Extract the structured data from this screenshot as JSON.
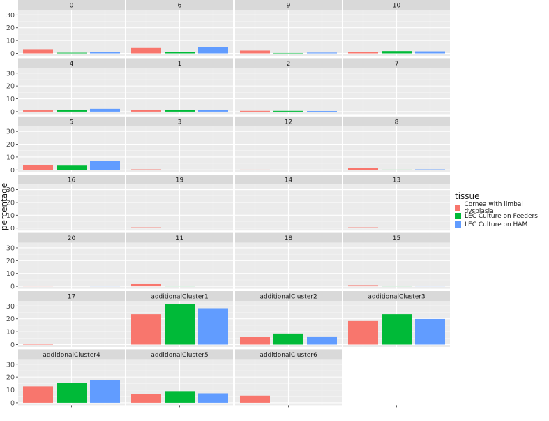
{
  "chart_data": {
    "type": "bar",
    "ylabel": "percentage",
    "ylim": [
      0,
      34
    ],
    "yticks": [
      0,
      10,
      20,
      30
    ],
    "grid": true,
    "legend_position": "right",
    "legend_title": "tissue",
    "series_names": [
      "Cornea with limbal dysplasia",
      "LEC Culture on Feeders",
      "LEC Culture on HAM"
    ],
    "colors": {
      "Cornea with limbal dysplasia": "#F8766D",
      "LEC Culture on Feeders": "#00BA38",
      "LEC Culture on HAM": "#619CFF"
    },
    "facets": [
      {
        "title": "0",
        "values": [
          3.3,
          0.5,
          0.8
        ]
      },
      {
        "title": "6",
        "values": [
          4.2,
          1.2,
          5.0
        ]
      },
      {
        "title": "9",
        "values": [
          2.2,
          0.3,
          0.6
        ]
      },
      {
        "title": "10",
        "values": [
          1.2,
          1.8,
          1.6
        ]
      },
      {
        "title": "4",
        "values": [
          1.0,
          1.5,
          2.2
        ]
      },
      {
        "title": "1",
        "values": [
          1.5,
          1.5,
          1.2
        ]
      },
      {
        "title": "2",
        "values": [
          0.6,
          0.6,
          0.5
        ]
      },
      {
        "title": "7",
        "values": [
          0,
          0,
          0
        ]
      },
      {
        "title": "5",
        "values": [
          3.5,
          3.3,
          6.7
        ]
      },
      {
        "title": "3",
        "values": [
          0.4,
          0.05,
          0.1
        ]
      },
      {
        "title": "12",
        "values": [
          0.2,
          0.05,
          0.05
        ]
      },
      {
        "title": "8",
        "values": [
          1.6,
          0.2,
          0.4
        ]
      },
      {
        "title": "16",
        "values": [
          0,
          0,
          0
        ]
      },
      {
        "title": "19",
        "values": [
          0.6,
          0.05,
          0.05
        ]
      },
      {
        "title": "14",
        "values": [
          0,
          0,
          0
        ]
      },
      {
        "title": "13",
        "values": [
          0.6,
          0.1,
          0
        ]
      },
      {
        "title": "20",
        "values": [
          0.3,
          0,
          0.2
        ]
      },
      {
        "title": "11",
        "values": [
          1.7,
          0.05,
          0
        ]
      },
      {
        "title": "18",
        "values": [
          0,
          0,
          0
        ]
      },
      {
        "title": "15",
        "values": [
          0.9,
          0.3,
          0.4
        ]
      },
      {
        "title": "17",
        "values": [
          0.3,
          0,
          0
        ]
      },
      {
        "title": "additionalCluster1",
        "values": [
          23.6,
          31.6,
          28.3
        ]
      },
      {
        "title": "additionalCluster2",
        "values": [
          6.0,
          8.5,
          6.3
        ]
      },
      {
        "title": "additionalCluster3",
        "values": [
          18.3,
          23.6,
          19.9
        ]
      },
      {
        "title": "additionalCluster4",
        "values": [
          12.8,
          15.5,
          17.9
        ]
      },
      {
        "title": "additionalCluster5",
        "values": [
          6.8,
          9.0,
          7.3
        ]
      },
      {
        "title": "additionalCluster6",
        "values": [
          5.5,
          0,
          0
        ]
      }
    ]
  }
}
